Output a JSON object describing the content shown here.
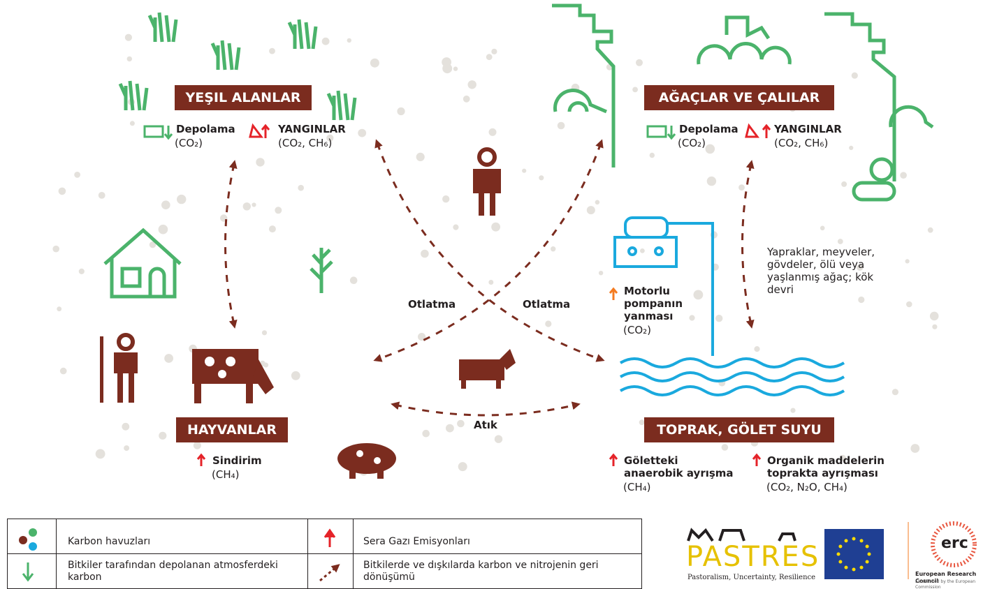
{
  "pools": {
    "grassland": {
      "title": "YEŞIL ALANLAR",
      "storage": "Depolama",
      "storage_gas": "(CO₂)",
      "fires": "YANGINLAR",
      "fires_gas": "(CO₂, CH₆)"
    },
    "trees": {
      "title": "AĞAÇLAR VE ÇALILAR",
      "storage": "Depolama",
      "storage_gas": "(CO₂)",
      "fires": "YANGINLAR",
      "fires_gas": "(CO₂, CH₆)"
    },
    "animals": {
      "title": "HAYVANLAR",
      "emission": "Sindirim",
      "emission_gas": "(CH₄)"
    },
    "soil": {
      "title": "TOPRAK, GÖLET SUYU",
      "pond": "Göletteki anaerobik ayrışma",
      "pond_gas": "(CH₄)",
      "organic": "Organik maddelerin toprakta ayrışması",
      "organic_gas": "(CO₂, N₂O, CH₄)"
    }
  },
  "pump": {
    "label": "Motorlu pompanın yanması",
    "gas": "(CO₂)"
  },
  "turnover": "Yapraklar, meyveler, gövdeler, ölü veya yaşlanmış ağaç; kök devri",
  "flows": {
    "grazing_left": "Otlatma",
    "grazing_right": "Otlatma",
    "waste": "Atık"
  },
  "legend": {
    "carbon_pools": "Karbon havuzları",
    "emissions": "Sera Gazı Emisyonları",
    "storage": "Bitkiler tarafından depolanan atmosferdeki karbon",
    "recycling": "Bitkilerde ve dışkılarda karbon ve nitrojenin geri dönüşümü"
  },
  "logos": {
    "pastres": "PASTRES",
    "pastres_tagline": "Pastoralism, Uncertainty, Resilience",
    "erc": "erc",
    "erc_name": "European Research Council",
    "erc_tagline": "Established by the European Commission"
  }
}
